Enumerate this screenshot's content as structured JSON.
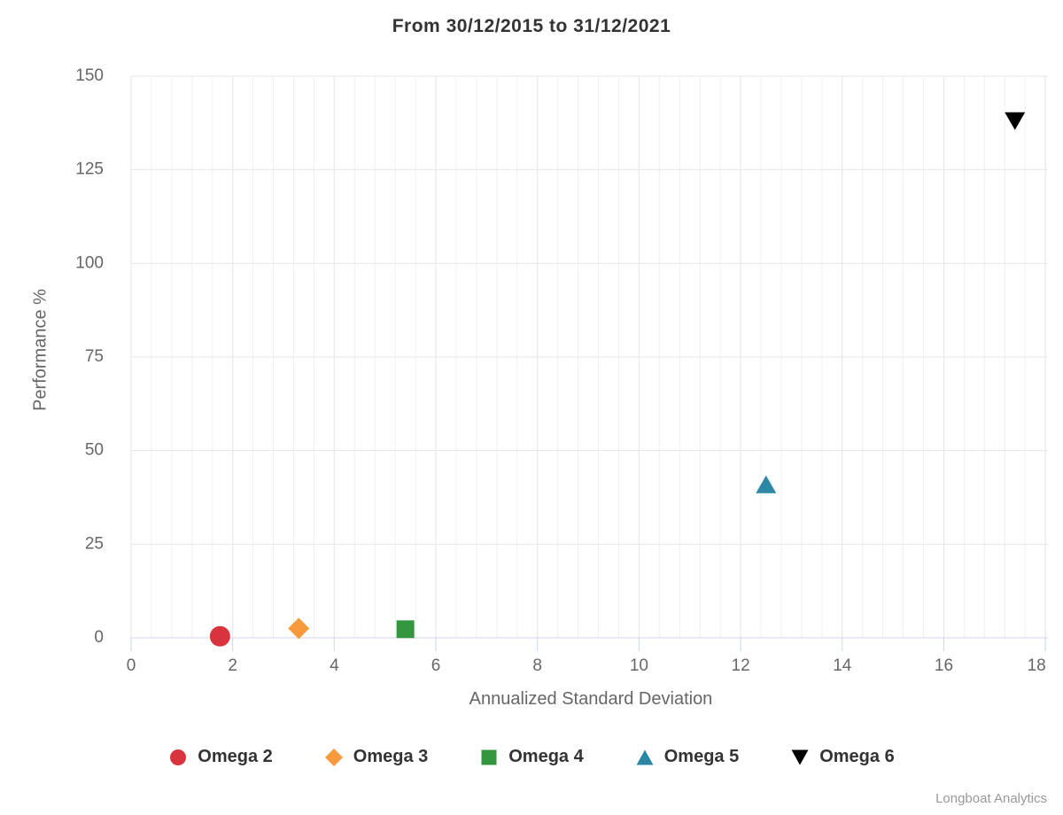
{
  "chart_data": {
    "type": "scatter",
    "title": "From 30/12/2015 to 31/12/2021",
    "xlabel": "Annualized Standard Deviation",
    "ylabel": "Performance %",
    "credits": "Longboat Analytics",
    "xlim": [
      0,
      18.05
    ],
    "ylim": [
      0,
      150
    ],
    "xticks": [
      0,
      2,
      4,
      6,
      8,
      10,
      12,
      14,
      16,
      18
    ],
    "yticks": [
      0,
      25,
      50,
      75,
      100,
      125,
      150
    ],
    "x_minor_step": 0.4,
    "grid": true,
    "legend_position": "bottom-center",
    "series": [
      {
        "name": "Omega 2",
        "marker": "circle",
        "color": "#d9333e",
        "points": [
          {
            "x": 1.75,
            "y": 0.4
          }
        ]
      },
      {
        "name": "Omega 3",
        "marker": "diamond",
        "color": "#f79a3c",
        "points": [
          {
            "x": 3.3,
            "y": 2.5
          }
        ]
      },
      {
        "name": "Omega 4",
        "marker": "square",
        "color": "#33953d",
        "points": [
          {
            "x": 5.4,
            "y": 2.3
          }
        ]
      },
      {
        "name": "Omega 5",
        "marker": "triangle-up",
        "color": "#2b87a3",
        "points": [
          {
            "x": 12.5,
            "y": 41
          }
        ]
      },
      {
        "name": "Omega 6",
        "marker": "triangle-down",
        "color": "#000000",
        "points": [
          {
            "x": 17.4,
            "y": 138
          }
        ]
      }
    ],
    "style_colors": {
      "title_text": "#333333",
      "axis_label_text": "#666666",
      "axis_line": "#ccd6eb",
      "grid_major": "#e6e6e6",
      "grid_minor": "#f0f0f0",
      "legend_text": "#333333",
      "credits_text": "#999999"
    }
  }
}
